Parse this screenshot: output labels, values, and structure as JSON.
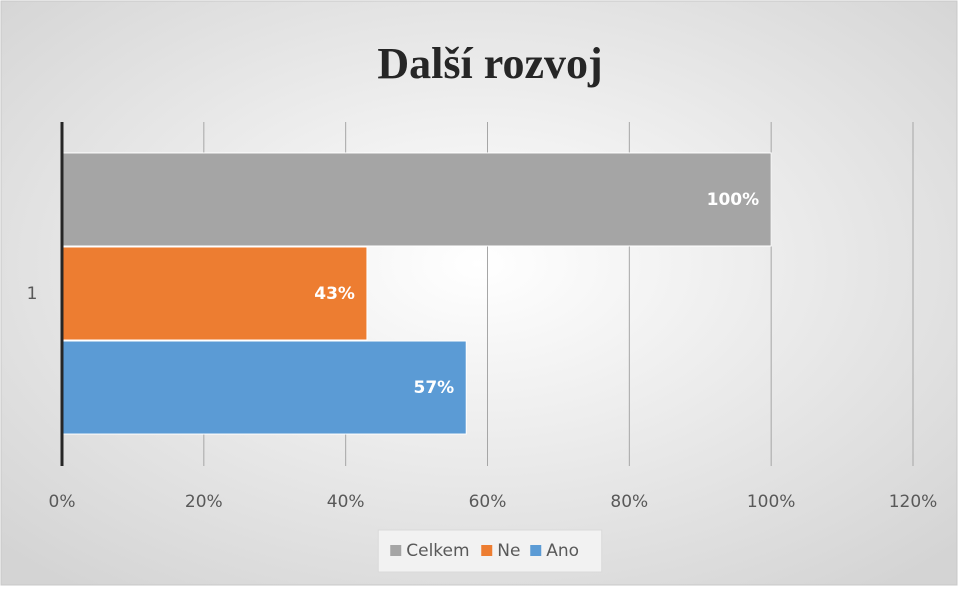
{
  "chart_data": {
    "type": "barh",
    "title": "Další rozvoj",
    "categories": [
      "1"
    ],
    "series": [
      {
        "name": "Celkem",
        "color": "#a5a5a5",
        "values": [
          100
        ],
        "value_labels": [
          "100%"
        ]
      },
      {
        "name": "Ne",
        "color": "#ed7d31",
        "values": [
          43
        ],
        "value_labels": [
          "43%"
        ]
      },
      {
        "name": "Ano",
        "color": "#5b9bd5",
        "values": [
          57
        ],
        "value_labels": [
          "57%"
        ]
      }
    ],
    "xlim": [
      0,
      120
    ],
    "xticks": [
      {
        "value": 0,
        "label": "0%"
      },
      {
        "value": 20,
        "label": "20%"
      },
      {
        "value": 40,
        "label": "40%"
      },
      {
        "value": 60,
        "label": "60%"
      },
      {
        "value": 80,
        "label": "80%"
      },
      {
        "value": 100,
        "label": "100%"
      },
      {
        "value": 120,
        "label": "120%"
      }
    ],
    "grid": true,
    "legend": "bottom"
  }
}
